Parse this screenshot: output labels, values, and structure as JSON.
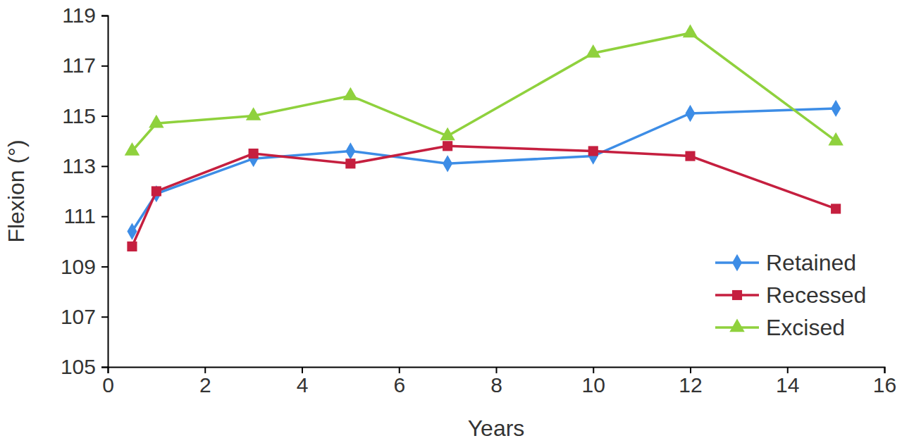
{
  "chart_data": {
    "type": "line",
    "x_label": "Years",
    "y_label": "Flexion (°)",
    "x": [
      0.5,
      1,
      3,
      5,
      7,
      10,
      12,
      15
    ],
    "series": [
      {
        "name": "Retained",
        "color": "#3d8de6",
        "marker": "diamond",
        "values": [
          110.4,
          111.9,
          113.3,
          113.6,
          113.1,
          113.4,
          115.1,
          115.3
        ]
      },
      {
        "name": "Recessed",
        "color": "#c51f3f",
        "marker": "square",
        "values": [
          109.8,
          112.0,
          113.5,
          113.1,
          113.8,
          113.6,
          113.4,
          111.3
        ]
      },
      {
        "name": "Excised",
        "color": "#8fd13d",
        "marker": "triangle",
        "values": [
          113.6,
          114.7,
          115.0,
          115.8,
          114.2,
          117.5,
          118.3,
          114.0
        ]
      }
    ],
    "xlim": [
      0,
      16
    ],
    "xticks": [
      0,
      2,
      4,
      6,
      8,
      10,
      12,
      14,
      16
    ],
    "ylim": [
      105,
      119
    ],
    "yticks": [
      105,
      107,
      109,
      111,
      113,
      115,
      117,
      119
    ],
    "grid": false,
    "legend": "bottom-right"
  }
}
